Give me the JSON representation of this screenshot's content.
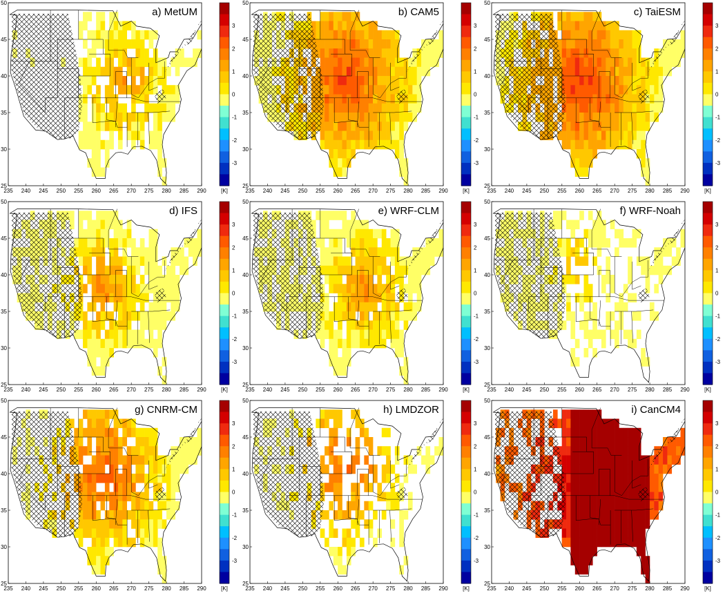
{
  "figure": {
    "panels": [
      {
        "label": "a) MetUM"
      },
      {
        "label": "b) CAM5"
      },
      {
        "label": "c) TaiESM"
      },
      {
        "label": "d) IFS"
      },
      {
        "label": "e) WRF-CLM"
      },
      {
        "label": "f) WRF-Noah"
      },
      {
        "label": "g) CNRM-CM"
      },
      {
        "label": "h) LMDZOR"
      },
      {
        "label": "i) CanCM4"
      }
    ],
    "x_ticks": [
      "235",
      "240",
      "245",
      "250",
      "255",
      "260",
      "265",
      "270",
      "275",
      "280",
      "285",
      "290"
    ],
    "y_ticks": [
      "25",
      "30",
      "35",
      "40",
      "45",
      "50"
    ],
    "colorbar": {
      "unit": "[K]",
      "ticks": [
        "3",
        "2",
        "1",
        "0",
        "-1",
        "-2",
        "-3"
      ],
      "colors": [
        "#a50000",
        "#d40000",
        "#ef2a0f",
        "#ff5a00",
        "#ff8000",
        "#ffa500",
        "#ffc800",
        "#ffe800",
        "#ffff66",
        "#7fffd4",
        "#40e0d0",
        "#00bfff",
        "#1e90ff",
        "#1060e0",
        "#0030c0",
        "#0000a0"
      ]
    },
    "hatch_color": "#000000",
    "map_extent": {
      "lon": [
        235,
        290
      ],
      "lat": [
        25,
        50
      ]
    }
  }
}
